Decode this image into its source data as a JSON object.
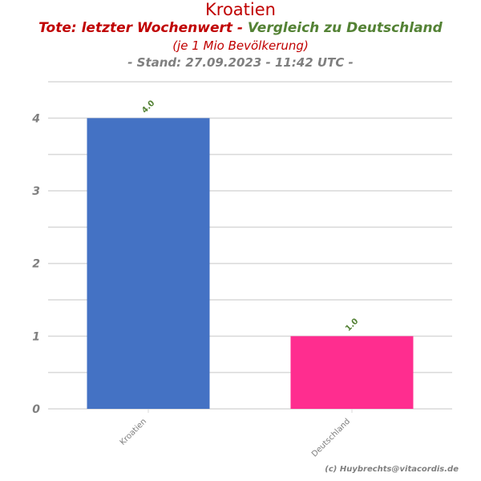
{
  "header": {
    "title": "Kroatien",
    "subtitle_red": "Tote: letzter Wochenwert -",
    "subtitle_green": "Vergleich zu Deutschland",
    "subtitle_unit": "(je 1 Mio Bevölkerung)",
    "subtitle_date": "- Stand: 27.09.2023 - 11:42 UTC -"
  },
  "footer": {
    "copyright": "(c) Huybrechts@vitacordis.de"
  },
  "chart_data": {
    "type": "bar",
    "title": "Kroatien",
    "xlabel": "",
    "ylabel": "",
    "categories": [
      "Kroatien",
      "Deutschland"
    ],
    "values": [
      4.0,
      1.0
    ],
    "data_labels": [
      "4.0",
      "1.0"
    ],
    "colors": [
      "#4472c4",
      "#ff2d8f"
    ],
    "ylim": [
      0,
      4.5
    ],
    "yticks": [
      0,
      1,
      2,
      3,
      4
    ],
    "ytick_labels": [
      "0",
      "1",
      "2",
      "3",
      "4"
    ],
    "grid": true,
    "legend": "none"
  }
}
